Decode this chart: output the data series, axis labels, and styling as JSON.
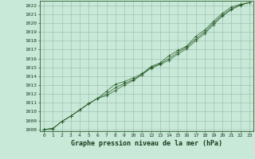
{
  "xlabel": "Graphe pression niveau de la mer (hPa)",
  "bg_color": "#c8e8d8",
  "plot_bg_color": "#c8e8d8",
  "grid_color": "#99bbaa",
  "line_color": "#2a5e2a",
  "marker_color": "#2a5e2a",
  "text_color": "#1a3a1a",
  "ylim": [
    1007.8,
    1022.5
  ],
  "xlim": [
    -0.5,
    23.5
  ],
  "yticks": [
    1008,
    1009,
    1010,
    1011,
    1012,
    1013,
    1014,
    1015,
    1016,
    1017,
    1018,
    1019,
    1020,
    1021,
    1022
  ],
  "xticks": [
    0,
    1,
    2,
    3,
    4,
    5,
    6,
    7,
    8,
    9,
    10,
    11,
    12,
    13,
    14,
    15,
    16,
    17,
    18,
    19,
    20,
    21,
    22,
    23
  ],
  "series": [
    [
      1008.0,
      1008.1,
      1008.9,
      1009.5,
      1010.2,
      1010.9,
      1011.5,
      1012.3,
      1013.1,
      1013.4,
      1013.8,
      1014.3,
      1015.1,
      1015.5,
      1016.3,
      1016.9,
      1017.4,
      1018.5,
      1019.2,
      1020.2,
      1021.1,
      1021.8,
      1022.1,
      1022.3
    ],
    [
      1008.0,
      1008.1,
      1008.9,
      1009.5,
      1010.2,
      1010.9,
      1011.5,
      1011.8,
      1012.4,
      1013.0,
      1013.5,
      1014.2,
      1014.9,
      1015.3,
      1015.8,
      1016.5,
      1017.1,
      1018.0,
      1018.8,
      1019.8,
      1020.8,
      1021.5,
      1022.0,
      1022.3
    ],
    [
      1008.0,
      1008.1,
      1008.9,
      1009.5,
      1010.2,
      1010.9,
      1011.5,
      1012.0,
      1012.7,
      1013.2,
      1013.6,
      1014.2,
      1015.0,
      1015.4,
      1016.0,
      1016.7,
      1017.3,
      1018.2,
      1019.0,
      1020.0,
      1020.9,
      1021.6,
      1022.05,
      1022.3
    ]
  ],
  "xlabel_fontsize": 6,
  "tick_fontsize": 4.5,
  "figsize": [
    3.2,
    2.0
  ],
  "dpi": 100
}
